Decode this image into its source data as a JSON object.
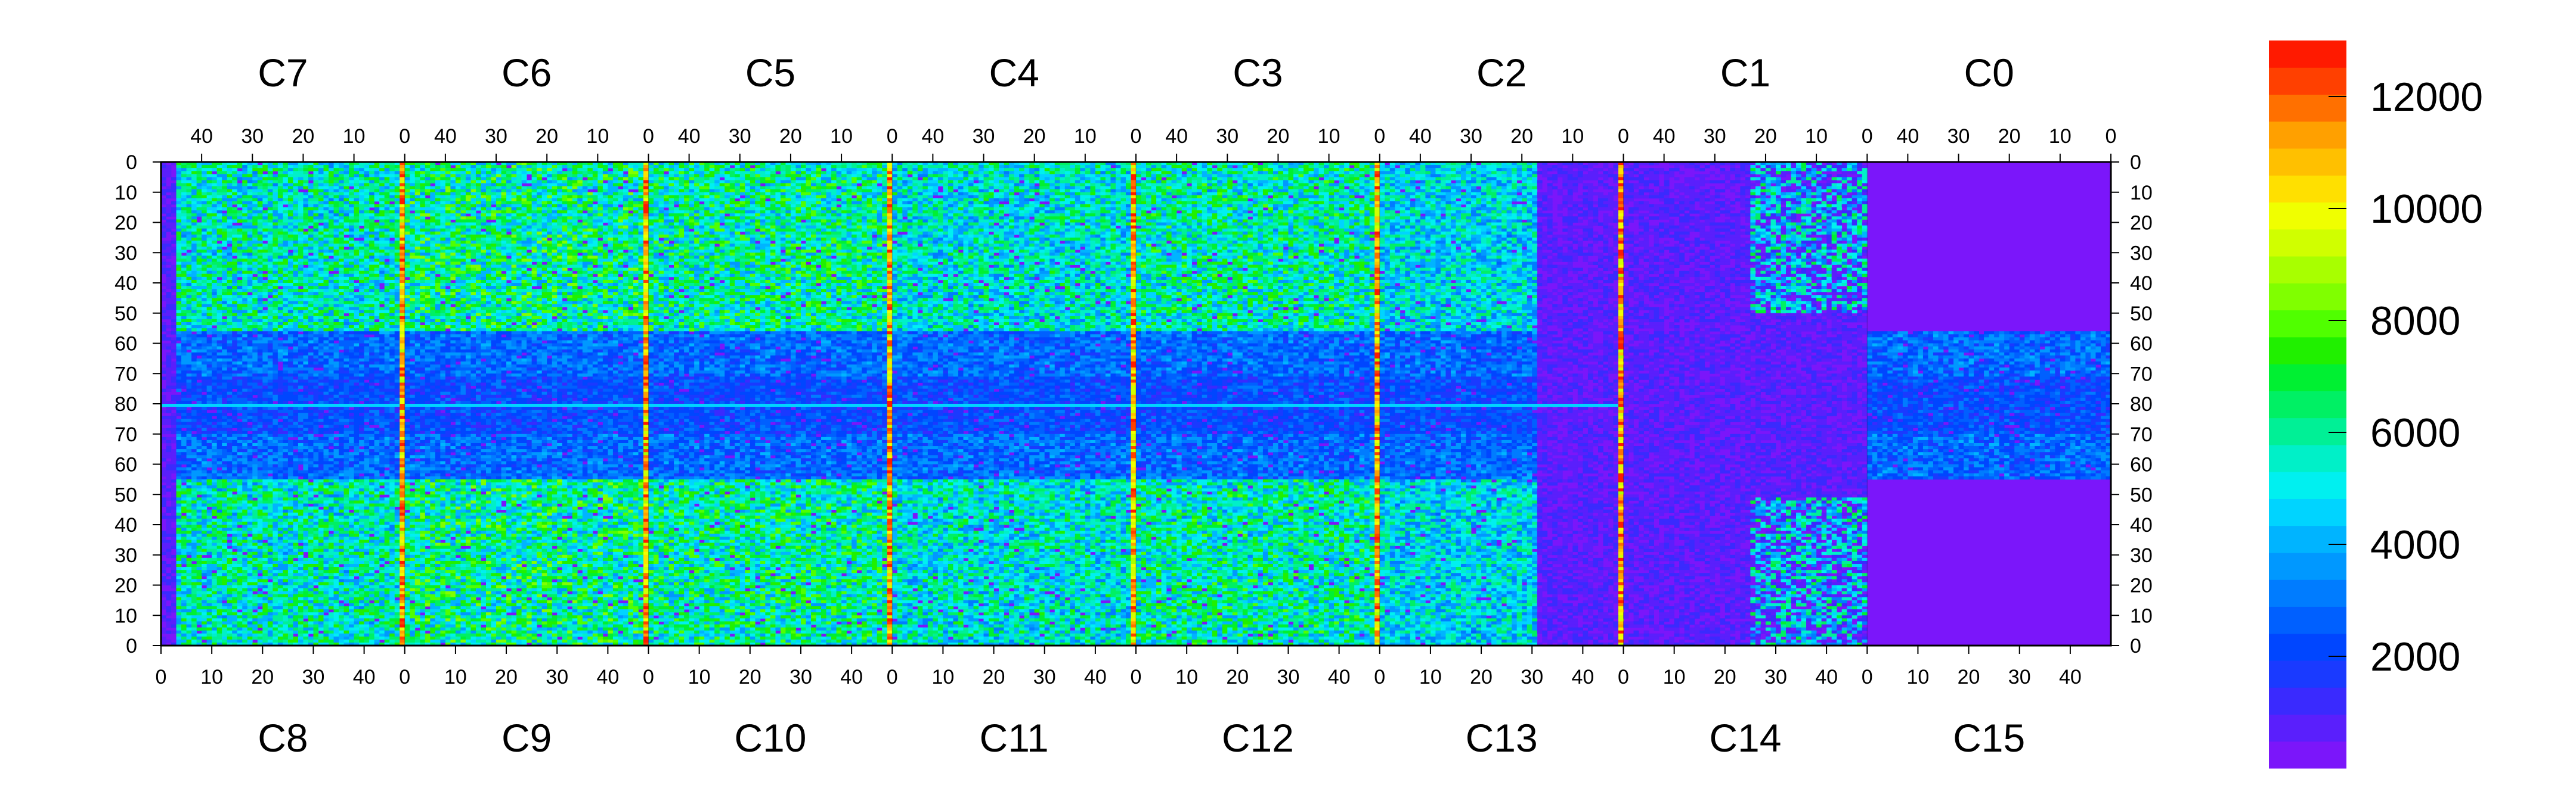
{
  "chart_data": {
    "type": "heatmap",
    "title": "",
    "xlabel": "",
    "ylabel": "",
    "top_chip_labels": [
      "C7",
      "C6",
      "C5",
      "C4",
      "C3",
      "C2",
      "C1",
      "C0"
    ],
    "bottom_chip_labels": [
      "C8",
      "C9",
      "C10",
      "C11",
      "C12",
      "C13",
      "C14",
      "C15"
    ],
    "top_x_ticks": [
      "40",
      "30",
      "20",
      "10",
      "0"
    ],
    "bottom_x_ticks": [
      "0",
      "10",
      "20",
      "30",
      "40"
    ],
    "y_ticks_left": [
      "0",
      "10",
      "20",
      "30",
      "40",
      "50",
      "60",
      "70",
      "80",
      "70",
      "60",
      "50",
      "40",
      "30",
      "20",
      "10",
      "0"
    ],
    "y_ticks_right": [
      "0",
      "10",
      "20",
      "30",
      "40",
      "50",
      "60",
      "70",
      "80",
      "70",
      "60",
      "50",
      "40",
      "30",
      "20",
      "10",
      "0"
    ],
    "colorbar": {
      "min": 0,
      "max": 13000,
      "ticks": [
        "2000",
        "4000",
        "6000",
        "8000",
        "10000",
        "12000"
      ],
      "tick_values": [
        2000,
        4000,
        6000,
        8000,
        10000,
        12000
      ],
      "colors": [
        "#7b16fa",
        "#5a1ffc",
        "#3a2afe",
        "#1a3aff",
        "#0046ff",
        "#0060ff",
        "#007cff",
        "#0098ff",
        "#00b4ff",
        "#00d4ff",
        "#00f0f0",
        "#00f0c8",
        "#00f096",
        "#00f064",
        "#00f032",
        "#20f000",
        "#50ff00",
        "#80ff00",
        "#a8ff00",
        "#d0ff00",
        "#f0ff00",
        "#ffe000",
        "#ffc000",
        "#ffa000",
        "#ff7000",
        "#ff4000",
        "#ff1a00"
      ]
    },
    "grid": false,
    "colors": {
      "background": "#7b16fa",
      "low": "#3a2afe",
      "mid": "#00f0c8",
      "high": "#ff1a00"
    }
  }
}
